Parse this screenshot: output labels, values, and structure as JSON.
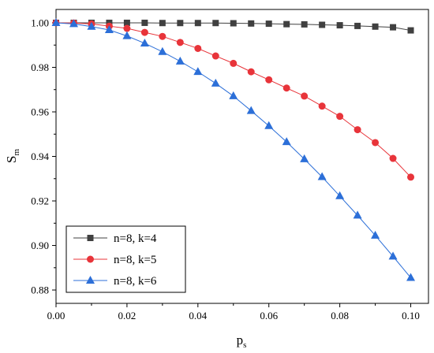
{
  "chart_data": {
    "type": "line",
    "xlabel": {
      "main": "p",
      "sub": "s"
    },
    "ylabel": {
      "main": "S",
      "sub": "m"
    },
    "xlim": [
      0.0,
      0.105
    ],
    "ylim": [
      0.874,
      1.006
    ],
    "xticks": [
      "0.00",
      "0.02",
      "0.04",
      "0.06",
      "0.08",
      "0.10"
    ],
    "xtick_values": [
      0.0,
      0.02,
      0.04,
      0.06,
      0.08,
      0.1
    ],
    "yticks": [
      "0.88",
      "0.90",
      "0.92",
      "0.94",
      "0.96",
      "0.98",
      "1.00"
    ],
    "ytick_values": [
      0.88,
      0.9,
      0.92,
      0.94,
      0.96,
      0.98,
      1.0
    ],
    "grid": false,
    "legend_position": "bottom-left",
    "x": [
      0.0,
      0.005,
      0.01,
      0.015,
      0.02,
      0.025,
      0.03,
      0.035,
      0.04,
      0.045,
      0.05,
      0.055,
      0.06,
      0.065,
      0.07,
      0.075,
      0.08,
      0.085,
      0.09,
      0.095,
      0.1
    ],
    "series": [
      {
        "name": "n=8, k=4",
        "color": "#404040",
        "marker": "square",
        "values": [
          1.0,
          1.0,
          1.0,
          1.0,
          1.0,
          1.0,
          0.9999,
          0.9999,
          0.9999,
          0.9999,
          0.9998,
          0.9997,
          0.9996,
          0.9994,
          0.9993,
          0.9991,
          0.9989,
          0.9986,
          0.9983,
          0.998,
          0.9966
        ]
      },
      {
        "name": "n=8, k=5",
        "color": "#e8343a",
        "marker": "circle",
        "values": [
          1.0,
          0.9999,
          0.9995,
          0.9985,
          0.9975,
          0.9957,
          0.9939,
          0.9912,
          0.9885,
          0.9851,
          0.9818,
          0.978,
          0.9744,
          0.9707,
          0.9671,
          0.9626,
          0.958,
          0.952,
          0.9462,
          0.9391,
          0.9307
        ]
      },
      {
        "name": "n=8, k=6",
        "color": "#2c6fd8",
        "marker": "triangle",
        "values": [
          1.0,
          0.9995,
          0.9983,
          0.9968,
          0.9941,
          0.9908,
          0.987,
          0.9827,
          0.978,
          0.9728,
          0.9671,
          0.9605,
          0.9537,
          0.9465,
          0.9388,
          0.9308,
          0.9222,
          0.9135,
          0.9045,
          0.8951,
          0.8855
        ]
      }
    ]
  }
}
